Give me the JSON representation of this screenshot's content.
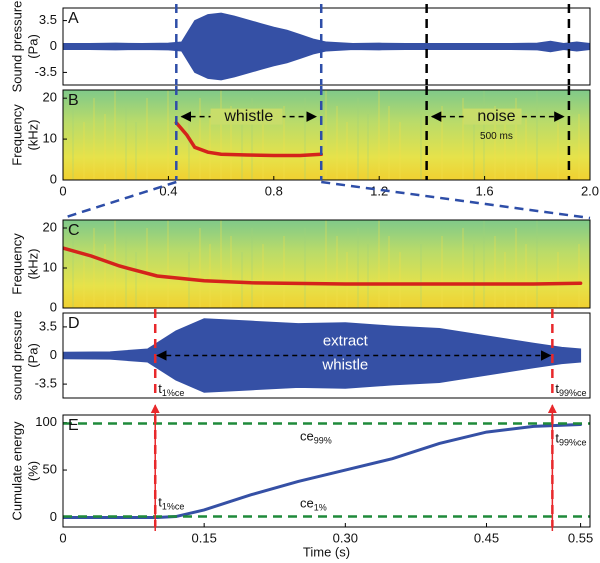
{
  "chart_data": [
    {
      "type": "waveform",
      "label": "A",
      "ylabel": [
        "Sound pressure",
        "(Pa)"
      ],
      "color": "#3550a5",
      "xlim": [
        0,
        2.0
      ],
      "ylim": [
        -5.2,
        5.2
      ],
      "yticks": [
        3.5,
        0,
        -3.5
      ],
      "x": [
        0,
        0.1,
        0.2,
        0.3,
        0.4,
        0.45,
        0.5,
        0.55,
        0.6,
        0.65,
        0.7,
        0.75,
        0.8,
        0.85,
        0.9,
        0.95,
        1.0,
        1.1,
        1.2,
        1.3,
        1.4,
        1.5,
        1.6,
        1.7,
        1.8,
        1.85,
        1.9,
        1.95,
        2.0
      ],
      "values": [
        0.4,
        0.4,
        0.45,
        0.4,
        0.45,
        0.6,
        3.5,
        4.3,
        4.5,
        4.1,
        3.6,
        3.1,
        2.6,
        2.2,
        1.6,
        1.0,
        0.6,
        0.4,
        0.45,
        0.4,
        0.4,
        0.4,
        0.4,
        0.4,
        0.45,
        0.7,
        0.4,
        0.6,
        0.4
      ],
      "vlines": [
        {
          "x": 0.43,
          "color": "#2e4ea8"
        },
        {
          "x": 0.98,
          "color": "#2e4ea8"
        },
        {
          "x": 1.38,
          "color": "#000000"
        },
        {
          "x": 1.92,
          "color": "#000000"
        }
      ]
    },
    {
      "type": "spectrogram",
      "label": "B",
      "ylabel": [
        "Frequency",
        "(kHz)"
      ],
      "color": "#d4231b",
      "xlim": [
        0,
        2.0
      ],
      "ylim": [
        0,
        22
      ],
      "yticks": [
        0,
        10,
        20
      ],
      "xticks": [
        0,
        0.4,
        0.8,
        1.2,
        1.6,
        {
          "value": 2.0,
          "label": "2.0"
        }
      ],
      "x": [
        0.43,
        0.47,
        0.5,
        0.55,
        0.6,
        0.7,
        0.8,
        0.9,
        0.98
      ],
      "values": [
        14,
        11,
        8,
        6.8,
        6.3,
        6.1,
        6.0,
        6.0,
        6.3
      ],
      "vlines": [
        {
          "x": 0.43,
          "color": "#2e4ea8"
        },
        {
          "x": 0.98,
          "color": "#2e4ea8"
        },
        {
          "x": 1.38,
          "color": "#000000"
        },
        {
          "x": 1.92,
          "color": "#000000"
        }
      ],
      "annotations": [
        "whistle",
        "noise",
        "500 ms"
      ]
    },
    {
      "type": "spectrogram",
      "label": "C",
      "ylabel": [
        "Frequency",
        "(kHz)"
      ],
      "color": "#d4231b",
      "xlim": [
        0,
        0.56
      ],
      "ylim": [
        0,
        22
      ],
      "yticks": [
        0,
        10,
        20
      ],
      "x": [
        0,
        0.03,
        0.06,
        0.1,
        0.15,
        0.2,
        0.3,
        0.4,
        0.5,
        0.55
      ],
      "values": [
        15,
        13,
        10.5,
        8,
        6.8,
        6.3,
        6.0,
        6.0,
        6.0,
        6.2
      ]
    },
    {
      "type": "waveform",
      "label": "D",
      "ylabel": [
        "sound pressure",
        "(Pa)"
      ],
      "color": "#3550a5",
      "xlim": [
        0,
        0.56
      ],
      "ylim": [
        -5.2,
        5.2
      ],
      "yticks": [
        3.5,
        0,
        -3.5
      ],
      "x": [
        0,
        0.05,
        0.09,
        0.12,
        0.15,
        0.2,
        0.25,
        0.3,
        0.35,
        0.4,
        0.45,
        0.5,
        0.53,
        0.55
      ],
      "values": [
        0.4,
        0.45,
        0.8,
        3.0,
        4.5,
        4.2,
        3.9,
        4.0,
        3.6,
        3.3,
        2.4,
        1.5,
        1.0,
        0.8
      ],
      "vlines": [
        {
          "x": 0.098,
          "color": "#e8282b"
        },
        {
          "x": 0.52,
          "color": "#e8282b"
        }
      ],
      "annotations": [
        "extract",
        "whistle"
      ],
      "marks": [
        {
          "t": "t",
          "sub": "1%ce"
        },
        {
          "t": "t",
          "sub": "99%ce"
        }
      ]
    },
    {
      "type": "line",
      "label": "E",
      "ylabel": [
        "Cumulate energy",
        "(%)"
      ],
      "color": "#3550a5",
      "xlabel": "Time (s)",
      "xlim": [
        0,
        0.56
      ],
      "ylim": [
        -10,
        108
      ],
      "yticks": [
        0,
        50,
        100
      ],
      "xticks": [
        0,
        0.15,
        {
          "value": 0.3,
          "label": "0.30"
        },
        0.45,
        0.55
      ],
      "x": [
        0,
        0.05,
        0.1,
        0.12,
        0.15,
        0.2,
        0.25,
        0.3,
        0.35,
        0.4,
        0.45,
        0.5,
        0.55
      ],
      "values": [
        0,
        0,
        0,
        1,
        8,
        24,
        38,
        50,
        62,
        78,
        90,
        96,
        98
      ],
      "hlines": [
        {
          "y": 99,
          "color": "#1f8a3a",
          "t": "ce",
          "sub": "99%"
        },
        {
          "y": 1,
          "color": "#1f8a3a",
          "t": "ce",
          "sub": "1%"
        }
      ],
      "vlines": [
        {
          "x": 0.098,
          "color": "#e8282b"
        },
        {
          "x": 0.52,
          "color": "#e8282b"
        }
      ],
      "marks": [
        {
          "t": "t",
          "sub": "1%ce"
        },
        {
          "t": "t",
          "sub": "99%ce"
        }
      ]
    }
  ]
}
